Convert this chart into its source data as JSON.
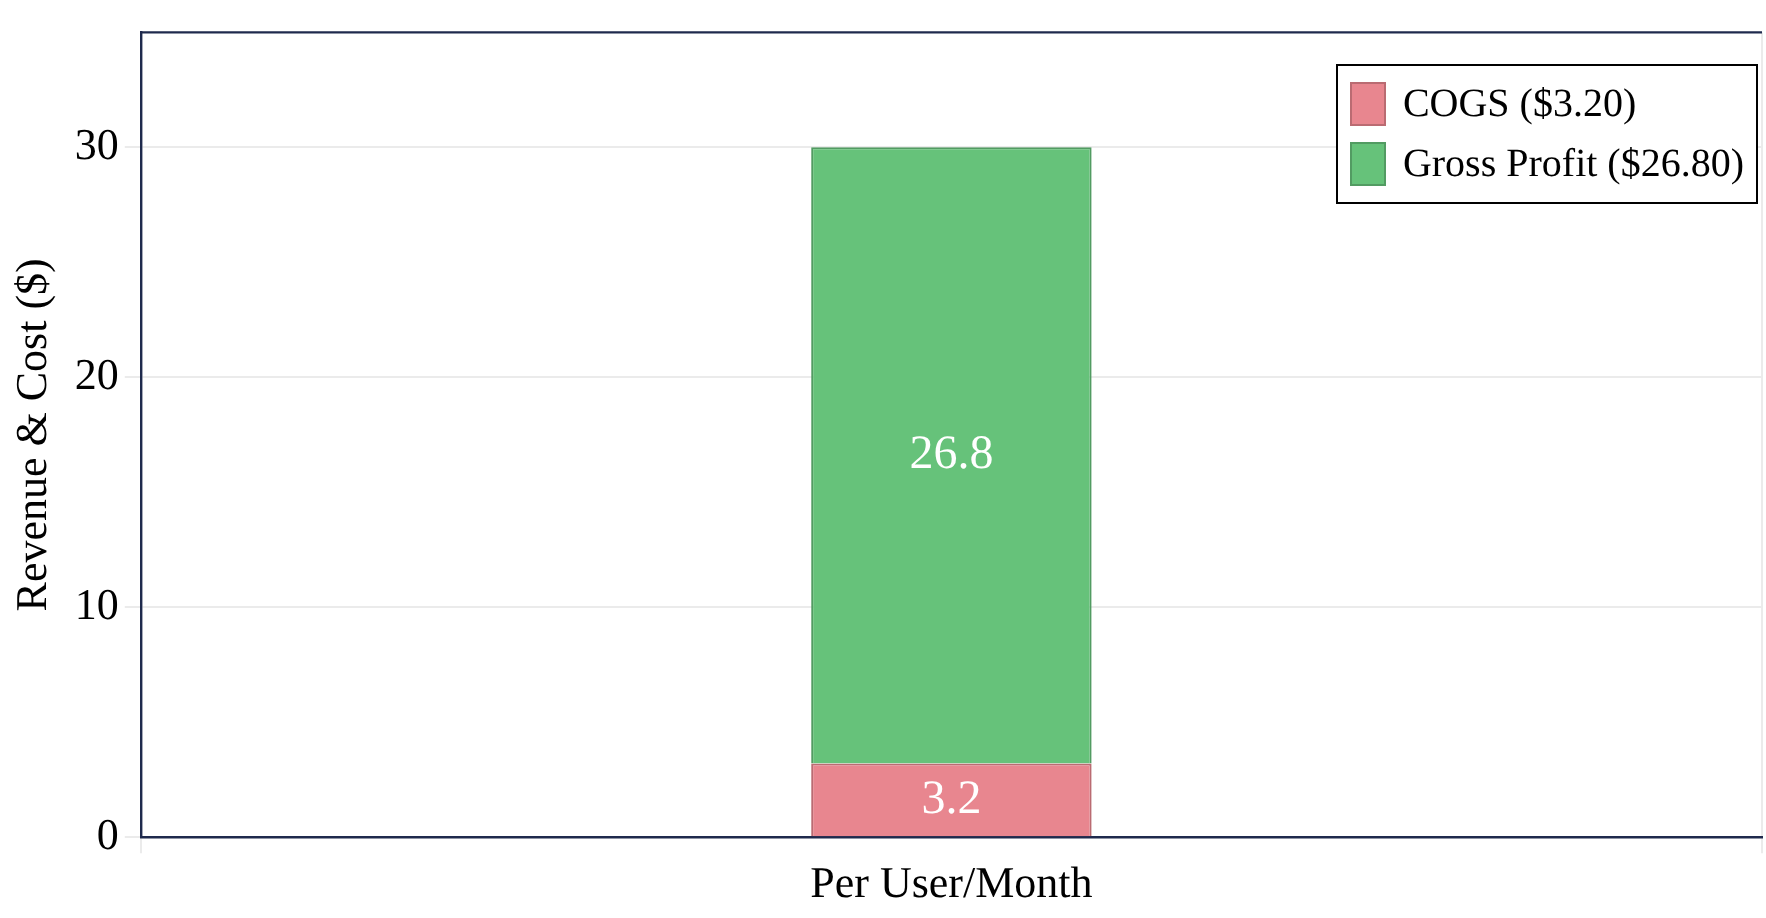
{
  "chart_data": {
    "type": "bar",
    "stacked": true,
    "ylabel": "Revenue & Cost ($)",
    "categories": [
      "Per User/Month"
    ],
    "series": [
      {
        "name": "COGS ($3.20)",
        "color": "#e8868f",
        "values": [
          3.2
        ]
      },
      {
        "name": "Gross Profit ($26.80)",
        "color": "#66c27a",
        "values": [
          26.8
        ]
      }
    ],
    "ylim": [
      0,
      35
    ],
    "yticks": [
      0,
      10,
      20,
      30
    ],
    "grid": true,
    "legend": "top right",
    "data_labels": true
  }
}
